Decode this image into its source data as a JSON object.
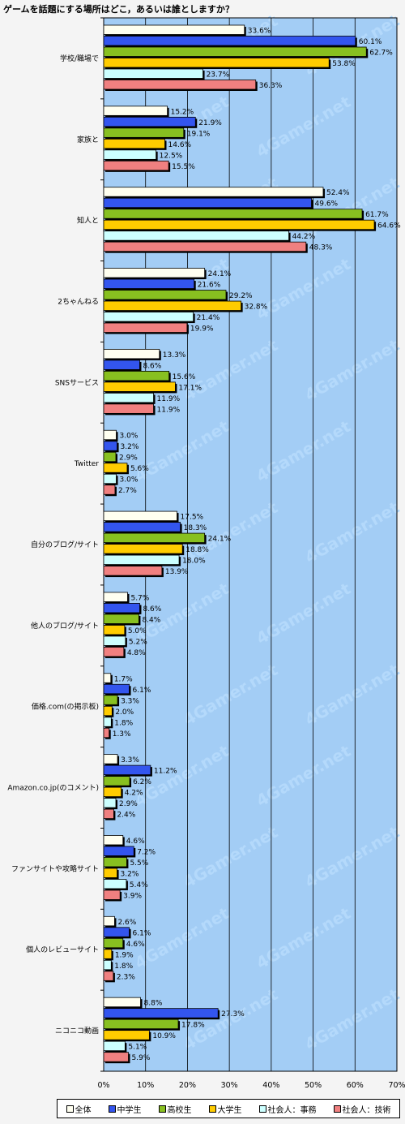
{
  "chart_data": {
    "type": "bar",
    "orientation": "horizontal",
    "title": "ゲームを話題にする場所はどこ，あるいは誰としますか？",
    "watermark": "4Gamer.net",
    "xlim": [
      0,
      70
    ],
    "x_ticks": [
      "0%",
      "10%",
      "20%",
      "30%",
      "40%",
      "50%",
      "60%",
      "70%"
    ],
    "grid": true,
    "legend_position": "bottom",
    "categories": [
      "学校/職場で",
      "家族と",
      "知人と",
      "2ちゃんねる",
      "SNSサービス",
      "Twitter",
      "自分のブログ/サイト",
      "他人のブログ/サイト",
      "価格.com(の掲示板)",
      "Amazon.co.jp(のコメント)",
      "ファンサイトや攻略サイト",
      "個人のレビューサイト",
      "ニコニコ動画"
    ],
    "series": [
      {
        "name": "全体",
        "color": "#fffff0",
        "values": [
          33.6,
          15.2,
          52.4,
          24.1,
          13.3,
          3.0,
          17.5,
          5.7,
          1.7,
          3.3,
          4.6,
          2.6,
          8.8
        ]
      },
      {
        "name": "中学生",
        "color": "#3355ee",
        "values": [
          60.1,
          21.9,
          49.6,
          21.6,
          8.6,
          3.2,
          18.3,
          8.6,
          6.1,
          11.2,
          7.2,
          6.1,
          27.3
        ]
      },
      {
        "name": "高校生",
        "color": "#88c020",
        "values": [
          62.7,
          19.1,
          61.7,
          29.2,
          15.6,
          2.9,
          24.1,
          8.4,
          3.3,
          6.2,
          5.5,
          4.6,
          17.8
        ]
      },
      {
        "name": "大学生",
        "color": "#ffcc00",
        "values": [
          53.8,
          14.6,
          64.6,
          32.8,
          17.1,
          5.6,
          18.8,
          5.0,
          2.0,
          4.2,
          3.2,
          1.9,
          10.9
        ]
      },
      {
        "name": "社会人：事務",
        "color": "#ccffff",
        "values": [
          23.7,
          12.5,
          44.2,
          21.4,
          11.9,
          3.0,
          18.0,
          5.2,
          1.8,
          2.9,
          5.4,
          1.8,
          5.1
        ]
      },
      {
        "name": "社会人：技術",
        "color": "#f08080",
        "values": [
          36.3,
          15.5,
          48.3,
          19.9,
          11.9,
          2.7,
          13.9,
          4.8,
          1.3,
          2.4,
          3.9,
          2.3,
          5.9
        ]
      }
    ]
  }
}
